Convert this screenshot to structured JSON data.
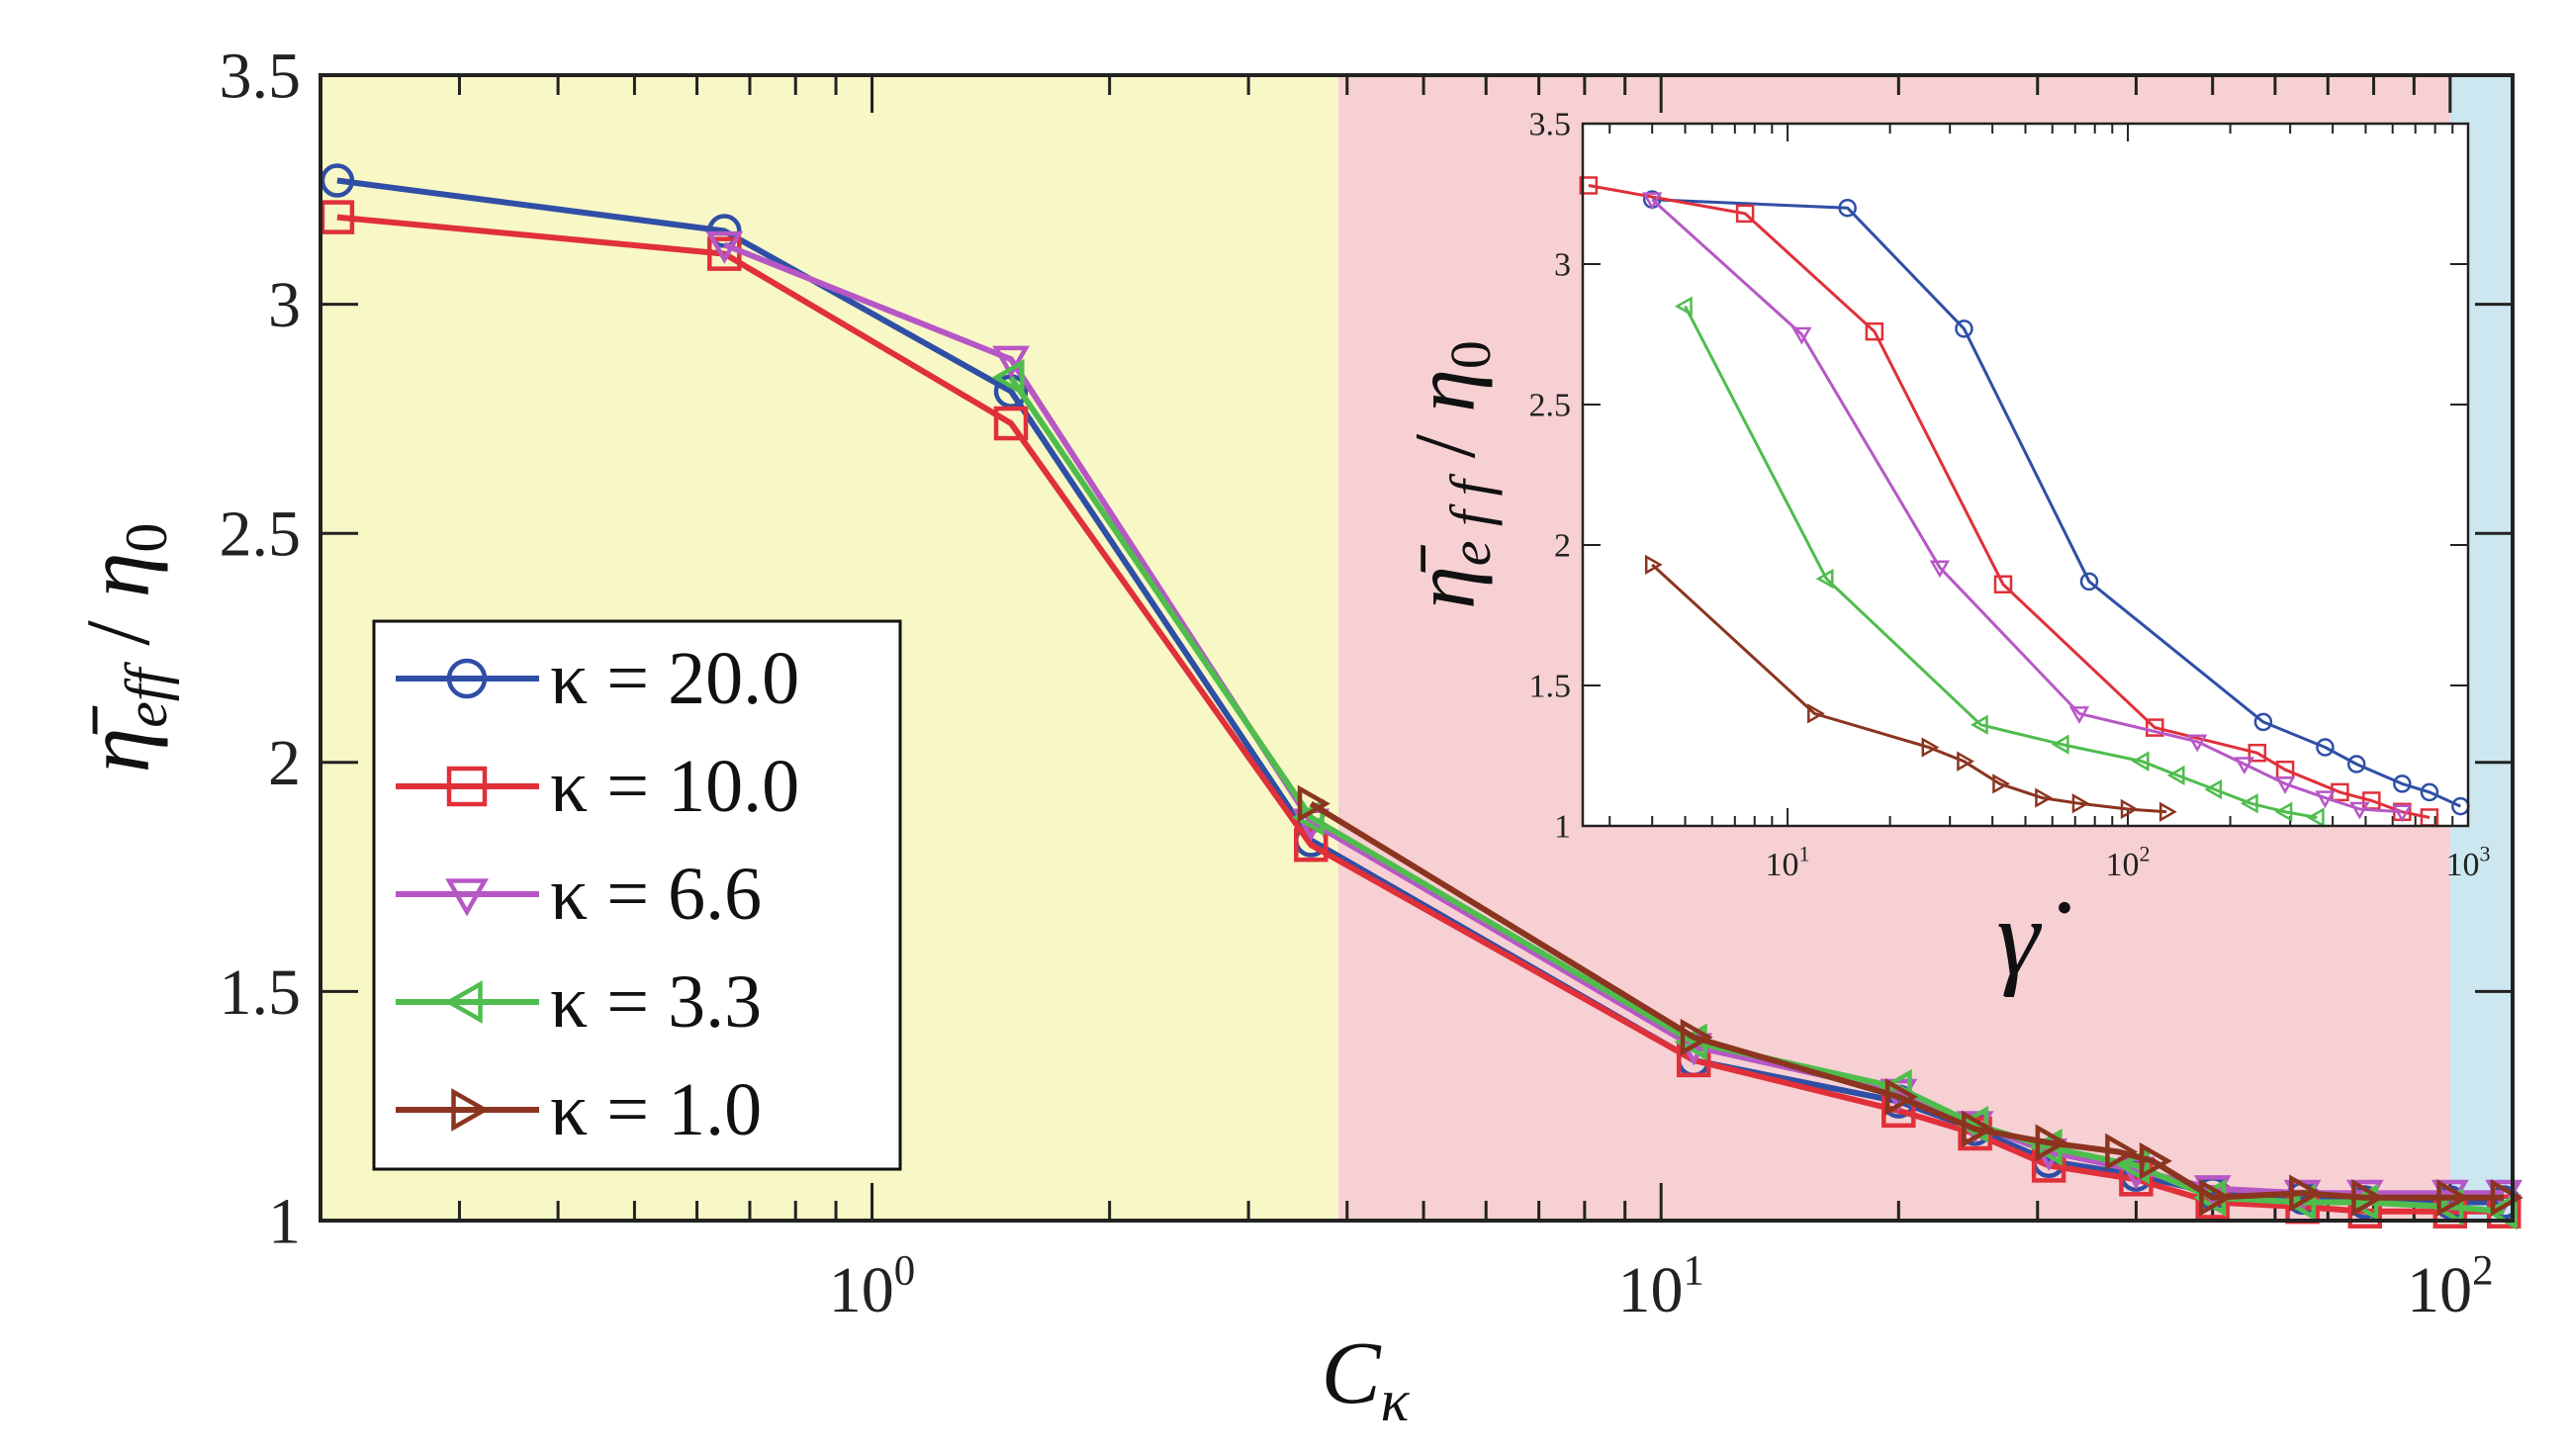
{
  "chart_data": [
    {
      "type": "line",
      "xscale": "log",
      "xlim": [
        0.2,
        120
      ],
      "ylim": [
        1,
        3.5
      ],
      "xlabel": "C_κ",
      "xlabel_main": "C",
      "xlabel_sub": "κ",
      "ylabel": "η̄_eff / η_0",
      "ylabel_eta_main": "η̄",
      "ylabel_eta_sub": "eff",
      "ylabel_div": "/",
      "ylabel_eta0_main": "η",
      "ylabel_eta0_sub": "0",
      "yticks": [
        {
          "value": 1,
          "label": "1"
        },
        {
          "value": 1.5,
          "label": "1.5"
        },
        {
          "value": 2,
          "label": "2"
        },
        {
          "value": 2.5,
          "label": "2.5"
        },
        {
          "value": 3,
          "label": "3"
        },
        {
          "value": 3.5,
          "label": "3.5"
        }
      ],
      "xticks": [
        {
          "value": 1,
          "base": "10",
          "exp": "0"
        },
        {
          "value": 10,
          "base": "10",
          "exp": "1"
        },
        {
          "value": 100,
          "base": "10",
          "exp": "2"
        }
      ],
      "regions": [
        {
          "from": 0.2,
          "to": 3.9,
          "color": "#f8f7c6"
        },
        {
          "from": 3.9,
          "to": 100,
          "color": "#f7d0d3"
        },
        {
          "from": 100,
          "to": 120,
          "color": "#cde7f0"
        }
      ],
      "legend_position": "lower-left",
      "series": [
        {
          "name": "κ = 20.0",
          "color": "#2f4fa6",
          "marker": "circle",
          "x": [
            0.21,
            0.65,
            1.5,
            3.6,
            11,
            20,
            25,
            31,
            40,
            50,
            65,
            78,
            100,
            117
          ],
          "y": [
            3.27,
            3.16,
            2.81,
            1.83,
            1.35,
            1.26,
            1.2,
            1.13,
            1.1,
            1.06,
            1.05,
            1.04,
            1.04,
            1.04
          ]
        },
        {
          "name": "κ = 10.0",
          "color": "#e0303a",
          "marker": "square",
          "x": [
            0.21,
            0.65,
            1.5,
            3.6,
            11,
            20,
            25,
            31,
            40,
            50,
            65,
            78,
            100,
            117
          ],
          "y": [
            3.19,
            3.11,
            2.74,
            1.82,
            1.35,
            1.24,
            1.19,
            1.12,
            1.09,
            1.04,
            1.03,
            1.02,
            1.02,
            1.02
          ]
        },
        {
          "name": "κ = 6.6",
          "color": "#b757c6",
          "marker": "triangle-down",
          "x": [
            0.65,
            1.5,
            3.6,
            11,
            20,
            25,
            31,
            40,
            50,
            65,
            78,
            100,
            117
          ],
          "y": [
            3.13,
            2.88,
            1.87,
            1.38,
            1.28,
            1.21,
            1.15,
            1.11,
            1.07,
            1.06,
            1.06,
            1.06,
            1.06
          ]
        },
        {
          "name": "κ = 3.3",
          "color": "#4fbd4d",
          "marker": "triangle-left",
          "x": [
            1.5,
            3.6,
            11,
            20,
            25,
            31,
            40,
            50,
            65,
            78,
            100,
            117
          ],
          "y": [
            2.84,
            1.88,
            1.39,
            1.29,
            1.21,
            1.16,
            1.12,
            1.05,
            1.04,
            1.04,
            1.03,
            1.02
          ]
        },
        {
          "name": "κ = 1.0",
          "color": "#8b3520",
          "marker": "triangle-right",
          "x": [
            3.6,
            11,
            20,
            25,
            31,
            38,
            42,
            50,
            65,
            78,
            100,
            117
          ],
          "y": [
            1.91,
            1.4,
            1.27,
            1.2,
            1.17,
            1.15,
            1.13,
            1.05,
            1.06,
            1.05,
            1.05,
            1.05
          ]
        }
      ]
    },
    {
      "type": "line",
      "inset": true,
      "xscale": "log",
      "xlim": [
        2.5,
        1000
      ],
      "ylim": [
        1,
        3.5
      ],
      "xlabel": "γ̇",
      "xlabel_main": "γ̇",
      "ylabel": "η̄_eff / η_0",
      "ylabel_eta_main": "η̄",
      "ylabel_eta_sub": "e f f",
      "ylabel_div": "/",
      "ylabel_eta0_main": "η",
      "ylabel_eta0_sub": "0",
      "yticks": [
        {
          "value": 1,
          "label": "1"
        },
        {
          "value": 1.5,
          "label": "1.5"
        },
        {
          "value": 2,
          "label": "2"
        },
        {
          "value": 2.5,
          "label": "2.5"
        },
        {
          "value": 3,
          "label": "3"
        },
        {
          "value": 3.5,
          "label": "3.5"
        }
      ],
      "xticks": [
        {
          "value": 10,
          "base": "10",
          "exp": "1"
        },
        {
          "value": 100,
          "base": "10",
          "exp": "2"
        },
        {
          "value": 1000,
          "base": "10",
          "exp": "3"
        }
      ],
      "series": [
        {
          "name": "κ = 20.0",
          "color": "#2f4fa6",
          "marker": "circle",
          "x": [
            4,
            15,
            33,
            77,
            250,
            380,
            470,
            640,
            770,
            950
          ],
          "y": [
            3.23,
            3.2,
            2.77,
            1.87,
            1.37,
            1.28,
            1.22,
            1.15,
            1.12,
            1.07
          ]
        },
        {
          "name": "κ = 10.0",
          "color": "#e0303a",
          "marker": "square",
          "x": [
            2.6,
            7.5,
            18,
            43,
            120,
            240,
            290,
            420,
            520,
            640,
            770
          ],
          "y": [
            3.28,
            3.18,
            2.76,
            1.86,
            1.35,
            1.26,
            1.2,
            1.12,
            1.09,
            1.05,
            1.03
          ]
        },
        {
          "name": "κ = 6.6",
          "color": "#b757c6",
          "marker": "triangle-down",
          "x": [
            4,
            11,
            28,
            72,
            160,
            220,
            290,
            380,
            480,
            640
          ],
          "y": [
            3.23,
            2.75,
            1.92,
            1.4,
            1.3,
            1.22,
            1.15,
            1.1,
            1.06,
            1.05
          ]
        },
        {
          "name": "κ = 3.3",
          "color": "#4fbd4d",
          "marker": "triangle-left",
          "x": [
            5,
            13,
            37,
            64,
            110,
            140,
            180,
            230,
            290,
            360
          ],
          "y": [
            2.85,
            1.88,
            1.36,
            1.29,
            1.23,
            1.18,
            1.13,
            1.08,
            1.05,
            1.03
          ]
        },
        {
          "name": "κ = 1.0",
          "color": "#8b3520",
          "marker": "triangle-right",
          "x": [
            4,
            12,
            26,
            33,
            42,
            56,
            72,
            100,
            130
          ],
          "y": [
            1.93,
            1.4,
            1.28,
            1.23,
            1.15,
            1.1,
            1.08,
            1.06,
            1.05
          ]
        }
      ]
    }
  ]
}
